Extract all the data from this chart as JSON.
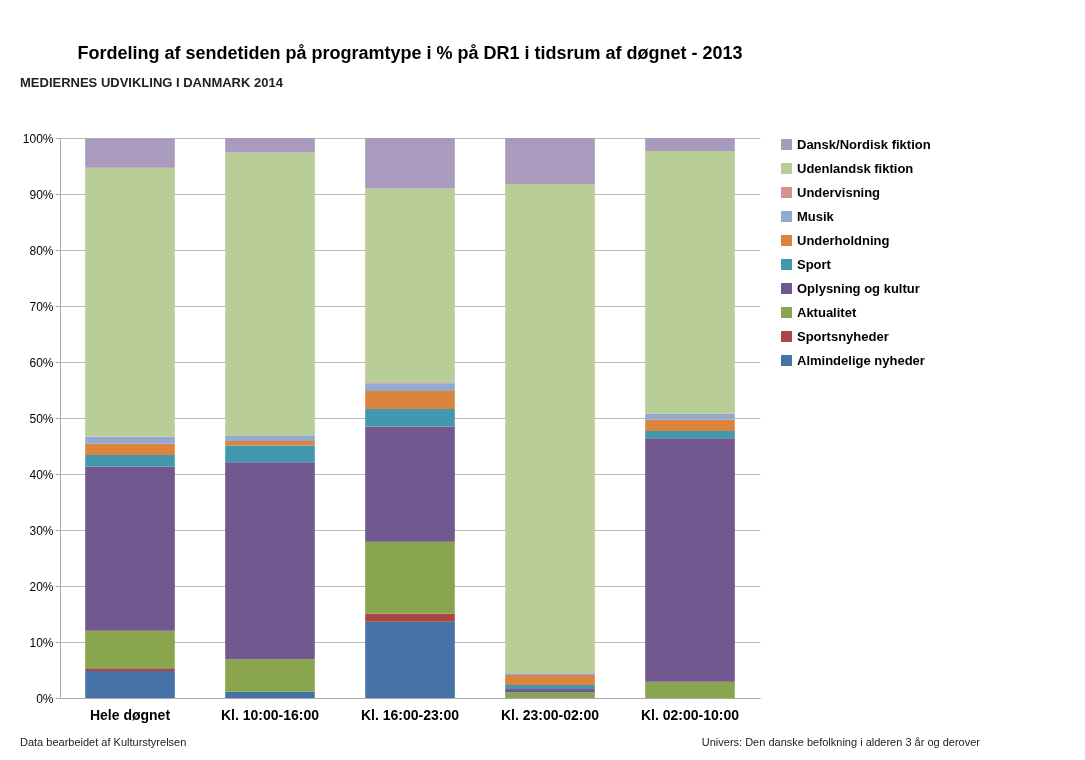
{
  "chart_data": {
    "type": "bar",
    "stacked": true,
    "title": "Fordeling af sendetiden på programtype i % på DR1 i tidsrum af døgnet - 2013",
    "categories": [
      "Hele døgnet",
      "Kl. 10:00-16:00",
      "Kl. 16:00-23:00",
      "Kl. 23:00-02:00",
      "Kl. 02:00-10:00"
    ],
    "series": [
      {
        "name": "Almindelige nyheder",
        "color": "#4572a7",
        "values": [
          4.8,
          1.1,
          13.6,
          0,
          0
        ]
      },
      {
        "name": "Sportsnyheder",
        "color": "#aa4643",
        "values": [
          0.5,
          0,
          1.5,
          0,
          0
        ]
      },
      {
        "name": "Aktualitet",
        "color": "#89a54e",
        "values": [
          6.7,
          5.8,
          12.8,
          1.0,
          2.9
        ]
      },
      {
        "name": "Oplysning og kultur",
        "color": "#71588f",
        "values": [
          29.3,
          35.2,
          20.6,
          0.6,
          43.5
        ]
      },
      {
        "name": "Sport",
        "color": "#4198af",
        "values": [
          2.1,
          3.0,
          3.1,
          0.7,
          1.3
        ]
      },
      {
        "name": "Underholdning",
        "color": "#db843d",
        "values": [
          2.0,
          0.8,
          3.2,
          1.8,
          2.0
        ]
      },
      {
        "name": "Musik",
        "color": "#93a9cf",
        "values": [
          1.3,
          1.0,
          1.4,
          0.3,
          1.1
        ]
      },
      {
        "name": "Undervisning",
        "color": "#d19392",
        "values": [
          null,
          0,
          0.2,
          0,
          0
        ]
      },
      {
        "name": "Udenlandsk fiktion",
        "color": "#b9cd96",
        "values": [
          48.0,
          50.5,
          34.6,
          87.4,
          46.9
        ]
      },
      {
        "name": "Dansk/Nordisk fiktion",
        "color": "#a99bbd",
        "values": [
          5.2,
          2.6,
          9.0,
          8.2,
          2.3
        ]
      }
    ],
    "ylim": [
      0,
      100
    ],
    "yticks": [
      {
        "value": 0,
        "label": "0%"
      },
      {
        "value": 10,
        "label": "10%"
      },
      {
        "value": 20,
        "label": "20%"
      },
      {
        "value": 30,
        "label": "30%"
      },
      {
        "value": 40,
        "label": "40%"
      },
      {
        "value": 50,
        "label": "50%"
      },
      {
        "value": 60,
        "label": "60%"
      },
      {
        "value": 70,
        "label": "70%"
      },
      {
        "value": 80,
        "label": "80%"
      },
      {
        "value": 90,
        "label": "90%"
      },
      {
        "value": 100,
        "label": "100%"
      }
    ],
    "grid": "y",
    "legend": "right",
    "annotations": [
      "MEDIERNES UDVIKLING I DANMARK 2014",
      "Data bearbeidet af Kulturstyrelsen",
      "Univers: Den danske befolkning i alderen 3 år og derover"
    ]
  }
}
